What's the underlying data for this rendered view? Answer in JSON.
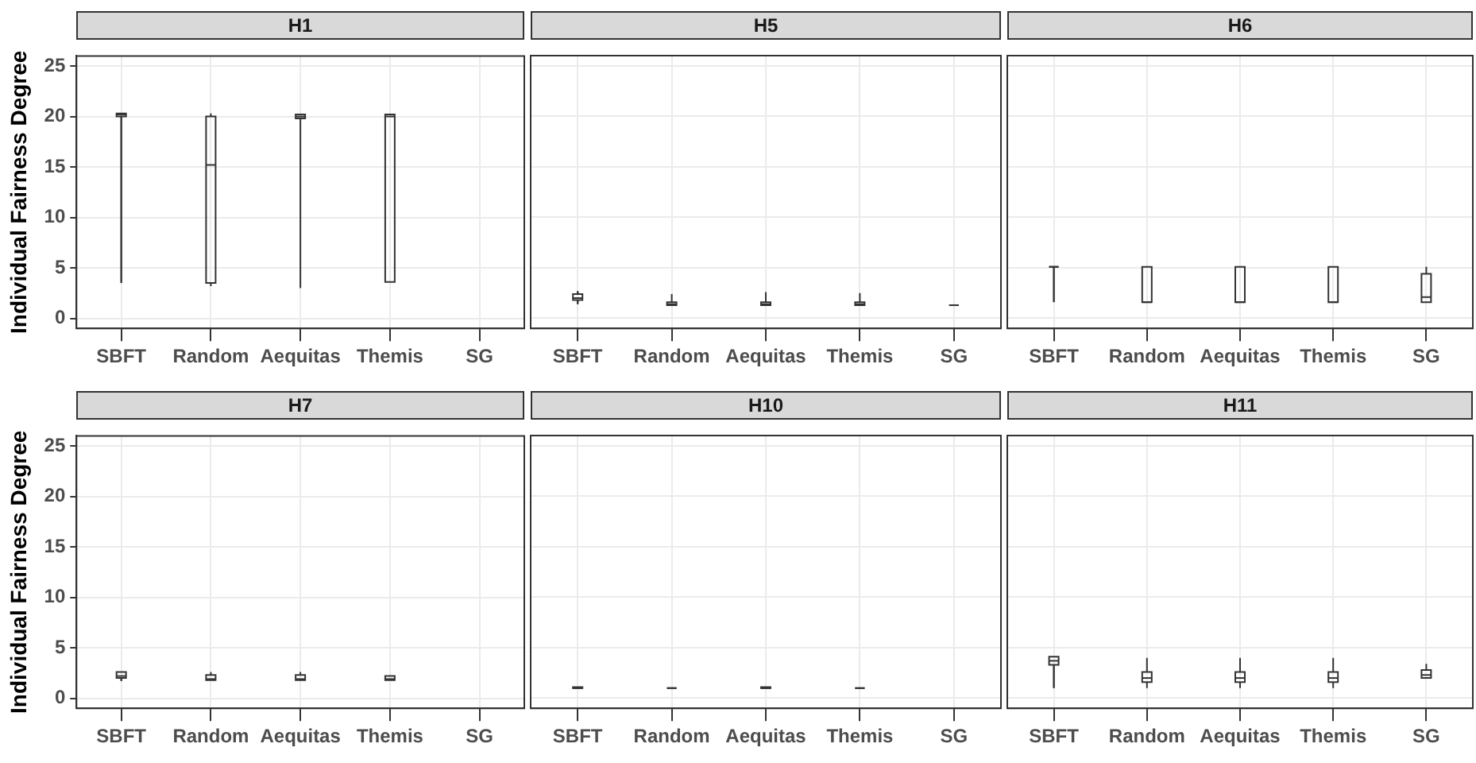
{
  "chart_data": [
    {
      "type": "box",
      "title": "H1",
      "ylabel": "Individual Fairness Degree",
      "categories": [
        "SBFT",
        "Random",
        "Aequitas",
        "Themis",
        "SG"
      ],
      "ylim": [
        -1,
        26
      ],
      "yticks": [
        0,
        5,
        10,
        15,
        20,
        25
      ],
      "grid": true,
      "color": "#333333",
      "boxes": [
        {
          "low": 3.5,
          "q1": 20.0,
          "median": 20.2,
          "q3": 20.3,
          "high": 20.4
        },
        {
          "low": 3.2,
          "q1": 3.5,
          "median": 15.2,
          "q3": 20.0,
          "high": 20.3
        },
        {
          "low": 3.0,
          "q1": 19.8,
          "median": 20.0,
          "q3": 20.2,
          "high": 20.4
        },
        {
          "low": 3.5,
          "q1": 3.6,
          "median": 20.0,
          "q3": 20.2,
          "high": 20.3
        },
        null
      ]
    },
    {
      "type": "box",
      "title": "H5",
      "categories": [
        "SBFT",
        "Random",
        "Aequitas",
        "Themis",
        "SG"
      ],
      "ylim": [
        -1,
        26
      ],
      "yticks": [
        0,
        5,
        10,
        15,
        20,
        25
      ],
      "grid": true,
      "tick_labels": "x",
      "color": "#333333",
      "boxes": [
        {
          "low": 1.4,
          "q1": 1.8,
          "median": 2.0,
          "q3": 2.4,
          "high": 2.7
        },
        {
          "low": 1.3,
          "q1": 1.3,
          "median": 1.4,
          "q3": 1.6,
          "high": 2.4
        },
        {
          "low": 1.3,
          "q1": 1.3,
          "median": 1.4,
          "q3": 1.6,
          "high": 2.6
        },
        {
          "low": 1.3,
          "q1": 1.3,
          "median": 1.4,
          "q3": 1.6,
          "high": 2.5
        },
        {
          "low": 1.3,
          "q1": 1.3,
          "median": 1.3,
          "q3": 1.3,
          "high": 1.3
        }
      ]
    },
    {
      "type": "box",
      "title": "H6",
      "categories": [
        "SBFT",
        "Random",
        "Aequitas",
        "Themis",
        "SG"
      ],
      "ylim": [
        -1,
        26
      ],
      "yticks": [
        0,
        5,
        10,
        15,
        20,
        25
      ],
      "grid": true,
      "tick_labels": "x",
      "color": "#333333",
      "boxes": [
        {
          "low": 1.6,
          "q1": 5.1,
          "median": 5.1,
          "q3": 5.1,
          "high": 5.1
        },
        {
          "low": 1.6,
          "q1": 1.6,
          "median": 1.6,
          "q3": 5.1,
          "high": 5.1
        },
        {
          "low": 1.6,
          "q1": 1.6,
          "median": 1.6,
          "q3": 5.1,
          "high": 5.1
        },
        {
          "low": 1.6,
          "q1": 1.6,
          "median": 1.6,
          "q3": 5.1,
          "high": 5.1
        },
        {
          "low": 1.6,
          "q1": 1.6,
          "median": 2.1,
          "q3": 4.4,
          "high": 5.1
        }
      ]
    },
    {
      "type": "box",
      "title": "H7",
      "ylabel": "Individual Fairness Degree",
      "categories": [
        "SBFT",
        "Random",
        "Aequitas",
        "Themis",
        "SG"
      ],
      "ylim": [
        -1,
        26
      ],
      "yticks": [
        0,
        5,
        10,
        15,
        20,
        25
      ],
      "grid": true,
      "color": "#333333",
      "boxes": [
        {
          "low": 1.7,
          "q1": 2.0,
          "median": 2.2,
          "q3": 2.6,
          "high": 2.8
        },
        {
          "low": 1.8,
          "q1": 1.8,
          "median": 1.9,
          "q3": 2.3,
          "high": 2.6
        },
        {
          "low": 1.8,
          "q1": 1.8,
          "median": 1.9,
          "q3": 2.3,
          "high": 2.6
        },
        {
          "low": 1.8,
          "q1": 1.8,
          "median": 1.9,
          "q3": 2.2,
          "high": 2.4
        },
        null
      ]
    },
    {
      "type": "box",
      "title": "H10",
      "categories": [
        "SBFT",
        "Random",
        "Aequitas",
        "Themis",
        "SG"
      ],
      "ylim": [
        -1,
        26
      ],
      "yticks": [
        0,
        5,
        10,
        15,
        20,
        25
      ],
      "grid": true,
      "tick_labels": "x",
      "color": "#333333",
      "boxes": [
        {
          "low": 0.9,
          "q1": 1.0,
          "median": 1.0,
          "q3": 1.1,
          "high": 1.2
        },
        {
          "low": 0.9,
          "q1": 1.0,
          "median": 1.0,
          "q3": 1.0,
          "high": 1.1
        },
        {
          "low": 0.9,
          "q1": 1.0,
          "median": 1.0,
          "q3": 1.1,
          "high": 1.2
        },
        {
          "low": 0.9,
          "q1": 1.0,
          "median": 1.0,
          "q3": 1.0,
          "high": 1.1
        },
        null
      ]
    },
    {
      "type": "box",
      "title": "H11",
      "categories": [
        "SBFT",
        "Random",
        "Aequitas",
        "Themis",
        "SG"
      ],
      "ylim": [
        -1,
        26
      ],
      "yticks": [
        0,
        5,
        10,
        15,
        20,
        25
      ],
      "grid": true,
      "tick_labels": "x",
      "color": "#333333",
      "boxes": [
        {
          "low": 1.0,
          "q1": 3.3,
          "median": 3.7,
          "q3": 4.1,
          "high": 4.2
        },
        {
          "low": 1.0,
          "q1": 1.6,
          "median": 2.0,
          "q3": 2.6,
          "high": 4.0
        },
        {
          "low": 1.0,
          "q1": 1.6,
          "median": 2.0,
          "q3": 2.6,
          "high": 4.0
        },
        {
          "low": 1.0,
          "q1": 1.6,
          "median": 2.0,
          "q3": 2.6,
          "high": 4.0
        },
        {
          "low": 2.0,
          "q1": 2.0,
          "median": 2.3,
          "q3": 2.8,
          "high": 3.4
        }
      ]
    }
  ]
}
